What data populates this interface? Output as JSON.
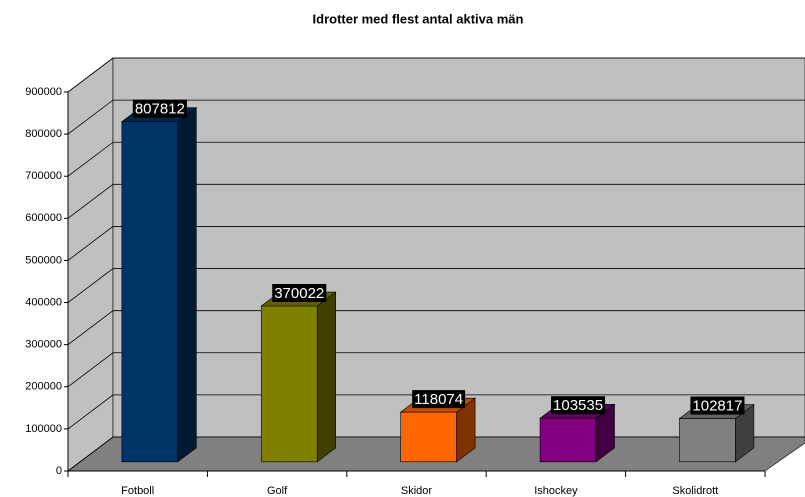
{
  "chart_data": {
    "type": "bar3d",
    "title": "Idrotter med flest antal aktiva män",
    "categories": [
      "Fotboll",
      "Golf",
      "Skidor",
      "Ishockey",
      "Skolidrott"
    ],
    "values": [
      807812,
      370022,
      118074,
      103535,
      102817
    ],
    "colors": [
      "#003366",
      "#808000",
      "#ff6600",
      "#800080",
      "#808080"
    ],
    "ylim": [
      0,
      900000
    ],
    "yticks": [
      0,
      100000,
      200000,
      300000,
      400000,
      500000,
      600000,
      700000,
      800000,
      900000
    ],
    "grid": true
  }
}
